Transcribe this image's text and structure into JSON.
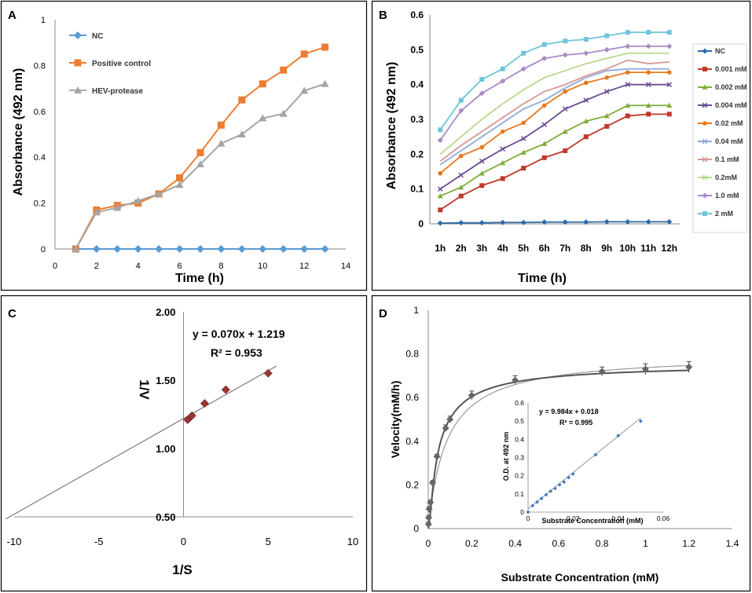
{
  "chart_data": [
    {
      "panel": "A",
      "type": "line",
      "xlabel": "Time (h)",
      "ylabel": "Absorbance (492 nm)",
      "xlim": [
        0,
        14
      ],
      "ylim": [
        0,
        1
      ],
      "xticks": [
        "0",
        "2",
        "4",
        "6",
        "8",
        "10",
        "12",
        "14"
      ],
      "yticks": [
        "0",
        "0.2",
        "0.4",
        "0.6",
        "0.8",
        "1"
      ],
      "legend": "top-left",
      "x": [
        1,
        2,
        3,
        4,
        5,
        6,
        7,
        8,
        9,
        10,
        11,
        12,
        13
      ],
      "series": [
        {
          "name": "NC",
          "color": "#5B9BD5",
          "marker": "diamond",
          "values": [
            0,
            0,
            0,
            0,
            0,
            0,
            0,
            0,
            0,
            0,
            0,
            0,
            0
          ]
        },
        {
          "name": "Positive control",
          "color": "#ED7D31",
          "marker": "square",
          "values": [
            0,
            0.17,
            0.19,
            0.2,
            0.24,
            0.31,
            0.42,
            0.54,
            0.65,
            0.72,
            0.78,
            0.85,
            0.88
          ]
        },
        {
          "name": "HEV-protease",
          "color": "#A5A5A5",
          "marker": "triangle",
          "values": [
            0,
            0.16,
            0.18,
            0.21,
            0.24,
            0.28,
            0.37,
            0.46,
            0.5,
            0.57,
            0.59,
            0.69,
            0.72
          ]
        }
      ]
    },
    {
      "panel": "B",
      "type": "line",
      "xlabel": "Time (h)",
      "ylabel": "Absorbance (492 nm)",
      "ylim": [
        0,
        0.6
      ],
      "yticks": [
        "0",
        "0.1",
        "0.2",
        "0.3",
        "0.4",
        "0.5",
        "0.6"
      ],
      "categories": [
        "1h",
        "2h",
        "3h",
        "4h",
        "5h",
        "6h",
        "7h",
        "8h",
        "9h",
        "10h",
        "11h",
        "12h"
      ],
      "legend": "right",
      "series": [
        {
          "name": "NC",
          "color": "#2E6AA8",
          "marker": "diamond",
          "values": [
            0.002,
            0.003,
            0.003,
            0.004,
            0.004,
            0.005,
            0.005,
            0.005,
            0.006,
            0.006,
            0.006,
            0.006
          ]
        },
        {
          "name": "0.001 mM",
          "color": "#C0392B",
          "marker": "square",
          "values": [
            0.04,
            0.08,
            0.11,
            0.13,
            0.16,
            0.19,
            0.21,
            0.25,
            0.28,
            0.31,
            0.315,
            0.315
          ]
        },
        {
          "name": "0.002 mM",
          "color": "#7DAE3A",
          "marker": "triangle",
          "values": [
            0.08,
            0.105,
            0.145,
            0.175,
            0.205,
            0.23,
            0.265,
            0.295,
            0.31,
            0.34,
            0.34,
            0.34
          ]
        },
        {
          "name": "0.004 mM",
          "color": "#6A4C93",
          "marker": "x",
          "values": [
            0.1,
            0.14,
            0.18,
            0.215,
            0.245,
            0.285,
            0.33,
            0.355,
            0.38,
            0.4,
            0.4,
            0.4
          ]
        },
        {
          "name": "0.02 mM",
          "color": "#E8791E",
          "marker": "circle",
          "values": [
            0.145,
            0.195,
            0.22,
            0.265,
            0.29,
            0.34,
            0.38,
            0.405,
            0.42,
            0.435,
            0.435,
            0.435
          ]
        },
        {
          "name": "0.04 mM",
          "color": "#8EA9DB",
          "marker": "none",
          "values": [
            0.17,
            0.21,
            0.25,
            0.29,
            0.33,
            0.355,
            0.39,
            0.42,
            0.44,
            0.445,
            0.445,
            0.445
          ]
        },
        {
          "name": "0.1 mM",
          "color": "#D99694",
          "marker": "none",
          "values": [
            0.18,
            0.225,
            0.265,
            0.305,
            0.345,
            0.38,
            0.4,
            0.425,
            0.445,
            0.47,
            0.46,
            0.465
          ]
        },
        {
          "name": "0.2mM",
          "color": "#B8D98B",
          "marker": "none",
          "values": [
            0.2,
            0.25,
            0.3,
            0.345,
            0.385,
            0.42,
            0.44,
            0.46,
            0.475,
            0.49,
            0.49,
            0.49
          ]
        },
        {
          "name": "1.0 mM",
          "color": "#A98BC5",
          "marker": "diamond",
          "values": [
            0.24,
            0.325,
            0.375,
            0.41,
            0.445,
            0.475,
            0.485,
            0.49,
            0.5,
            0.51,
            0.51,
            0.51
          ]
        },
        {
          "name": "2 mM",
          "color": "#6FC5DB",
          "marker": "square",
          "values": [
            0.27,
            0.355,
            0.415,
            0.445,
            0.49,
            0.515,
            0.525,
            0.53,
            0.54,
            0.55,
            0.55,
            0.55
          ]
        }
      ]
    },
    {
      "panel": "C",
      "type": "scatter",
      "xlabel": "1/S",
      "ylabel": "1/V",
      "xlim": [
        -10,
        10
      ],
      "ylim": [
        0.5,
        2.0
      ],
      "xticks": [
        "-10",
        "-5",
        "0",
        "5",
        "10"
      ],
      "yticks": [
        "0.50",
        "1.00",
        "1.50",
        "2.00"
      ],
      "equation": "y = 0.070x + 1.219",
      "r2": "R² = 0.953",
      "fit": {
        "slope": 0.07,
        "intercept": 1.219
      },
      "points": [
        [
          0.25,
          1.21
        ],
        [
          0.5,
          1.24
        ],
        [
          1.25,
          1.33
        ],
        [
          2.5,
          1.43
        ],
        [
          5,
          1.55
        ]
      ]
    },
    {
      "panel": "D",
      "type": "scatter",
      "xlabel": "Substrate Concentration (mM)",
      "ylabel": "Velocity(mM/h)",
      "xlim": [
        0,
        1.4
      ],
      "ylim": [
        0,
        1
      ],
      "xticks": [
        "0",
        "0.2",
        "0.4",
        "0.6",
        "0.8",
        "1",
        "1.2",
        "1.4"
      ],
      "yticks": [
        "0",
        "0.2",
        "0.4",
        "0.6",
        "0.8",
        "1"
      ],
      "points": [
        [
          0.001,
          0.02
        ],
        [
          0.002,
          0.05
        ],
        [
          0.004,
          0.09
        ],
        [
          0.01,
          0.12
        ],
        [
          0.02,
          0.21
        ],
        [
          0.04,
          0.33
        ],
        [
          0.08,
          0.46
        ],
        [
          0.1,
          0.5
        ],
        [
          0.2,
          0.61
        ],
        [
          0.4,
          0.68
        ],
        [
          0.8,
          0.72
        ],
        [
          1.0,
          0.73
        ],
        [
          1.2,
          0.74
        ]
      ],
      "errors": [
        0.01,
        0.01,
        0.01,
        0.01,
        0.01,
        0.01,
        0.015,
        0.015,
        0.02,
        0.02,
        0.02,
        0.025,
        0.025
      ],
      "inset": {
        "xlabel": "Substrate Concentration (mM)",
        "ylabel": "O.D. at 492 nm",
        "xlim": [
          0,
          0.06
        ],
        "ylim": [
          0,
          0.6
        ],
        "xticks": [
          "0",
          "0.02",
          "0.04",
          "0.06"
        ],
        "yticks": [
          "0",
          "0.1",
          "0.2",
          "0.3",
          "0.4",
          "0.5",
          "0.6"
        ],
        "equation": "y = 9.984x + 0.018",
        "r2": "R² = 0.995",
        "fit": {
          "slope": 9.984,
          "intercept": 0.018
        },
        "points": [
          [
            0,
            0.0
          ],
          [
            0.002,
            0.035
          ],
          [
            0.004,
            0.055
          ],
          [
            0.006,
            0.075
          ],
          [
            0.008,
            0.095
          ],
          [
            0.01,
            0.115
          ],
          [
            0.012,
            0.13
          ],
          [
            0.014,
            0.15
          ],
          [
            0.016,
            0.165
          ],
          [
            0.018,
            0.19
          ],
          [
            0.02,
            0.21
          ],
          [
            0.03,
            0.315
          ],
          [
            0.04,
            0.42
          ],
          [
            0.05,
            0.5
          ]
        ]
      }
    }
  ]
}
